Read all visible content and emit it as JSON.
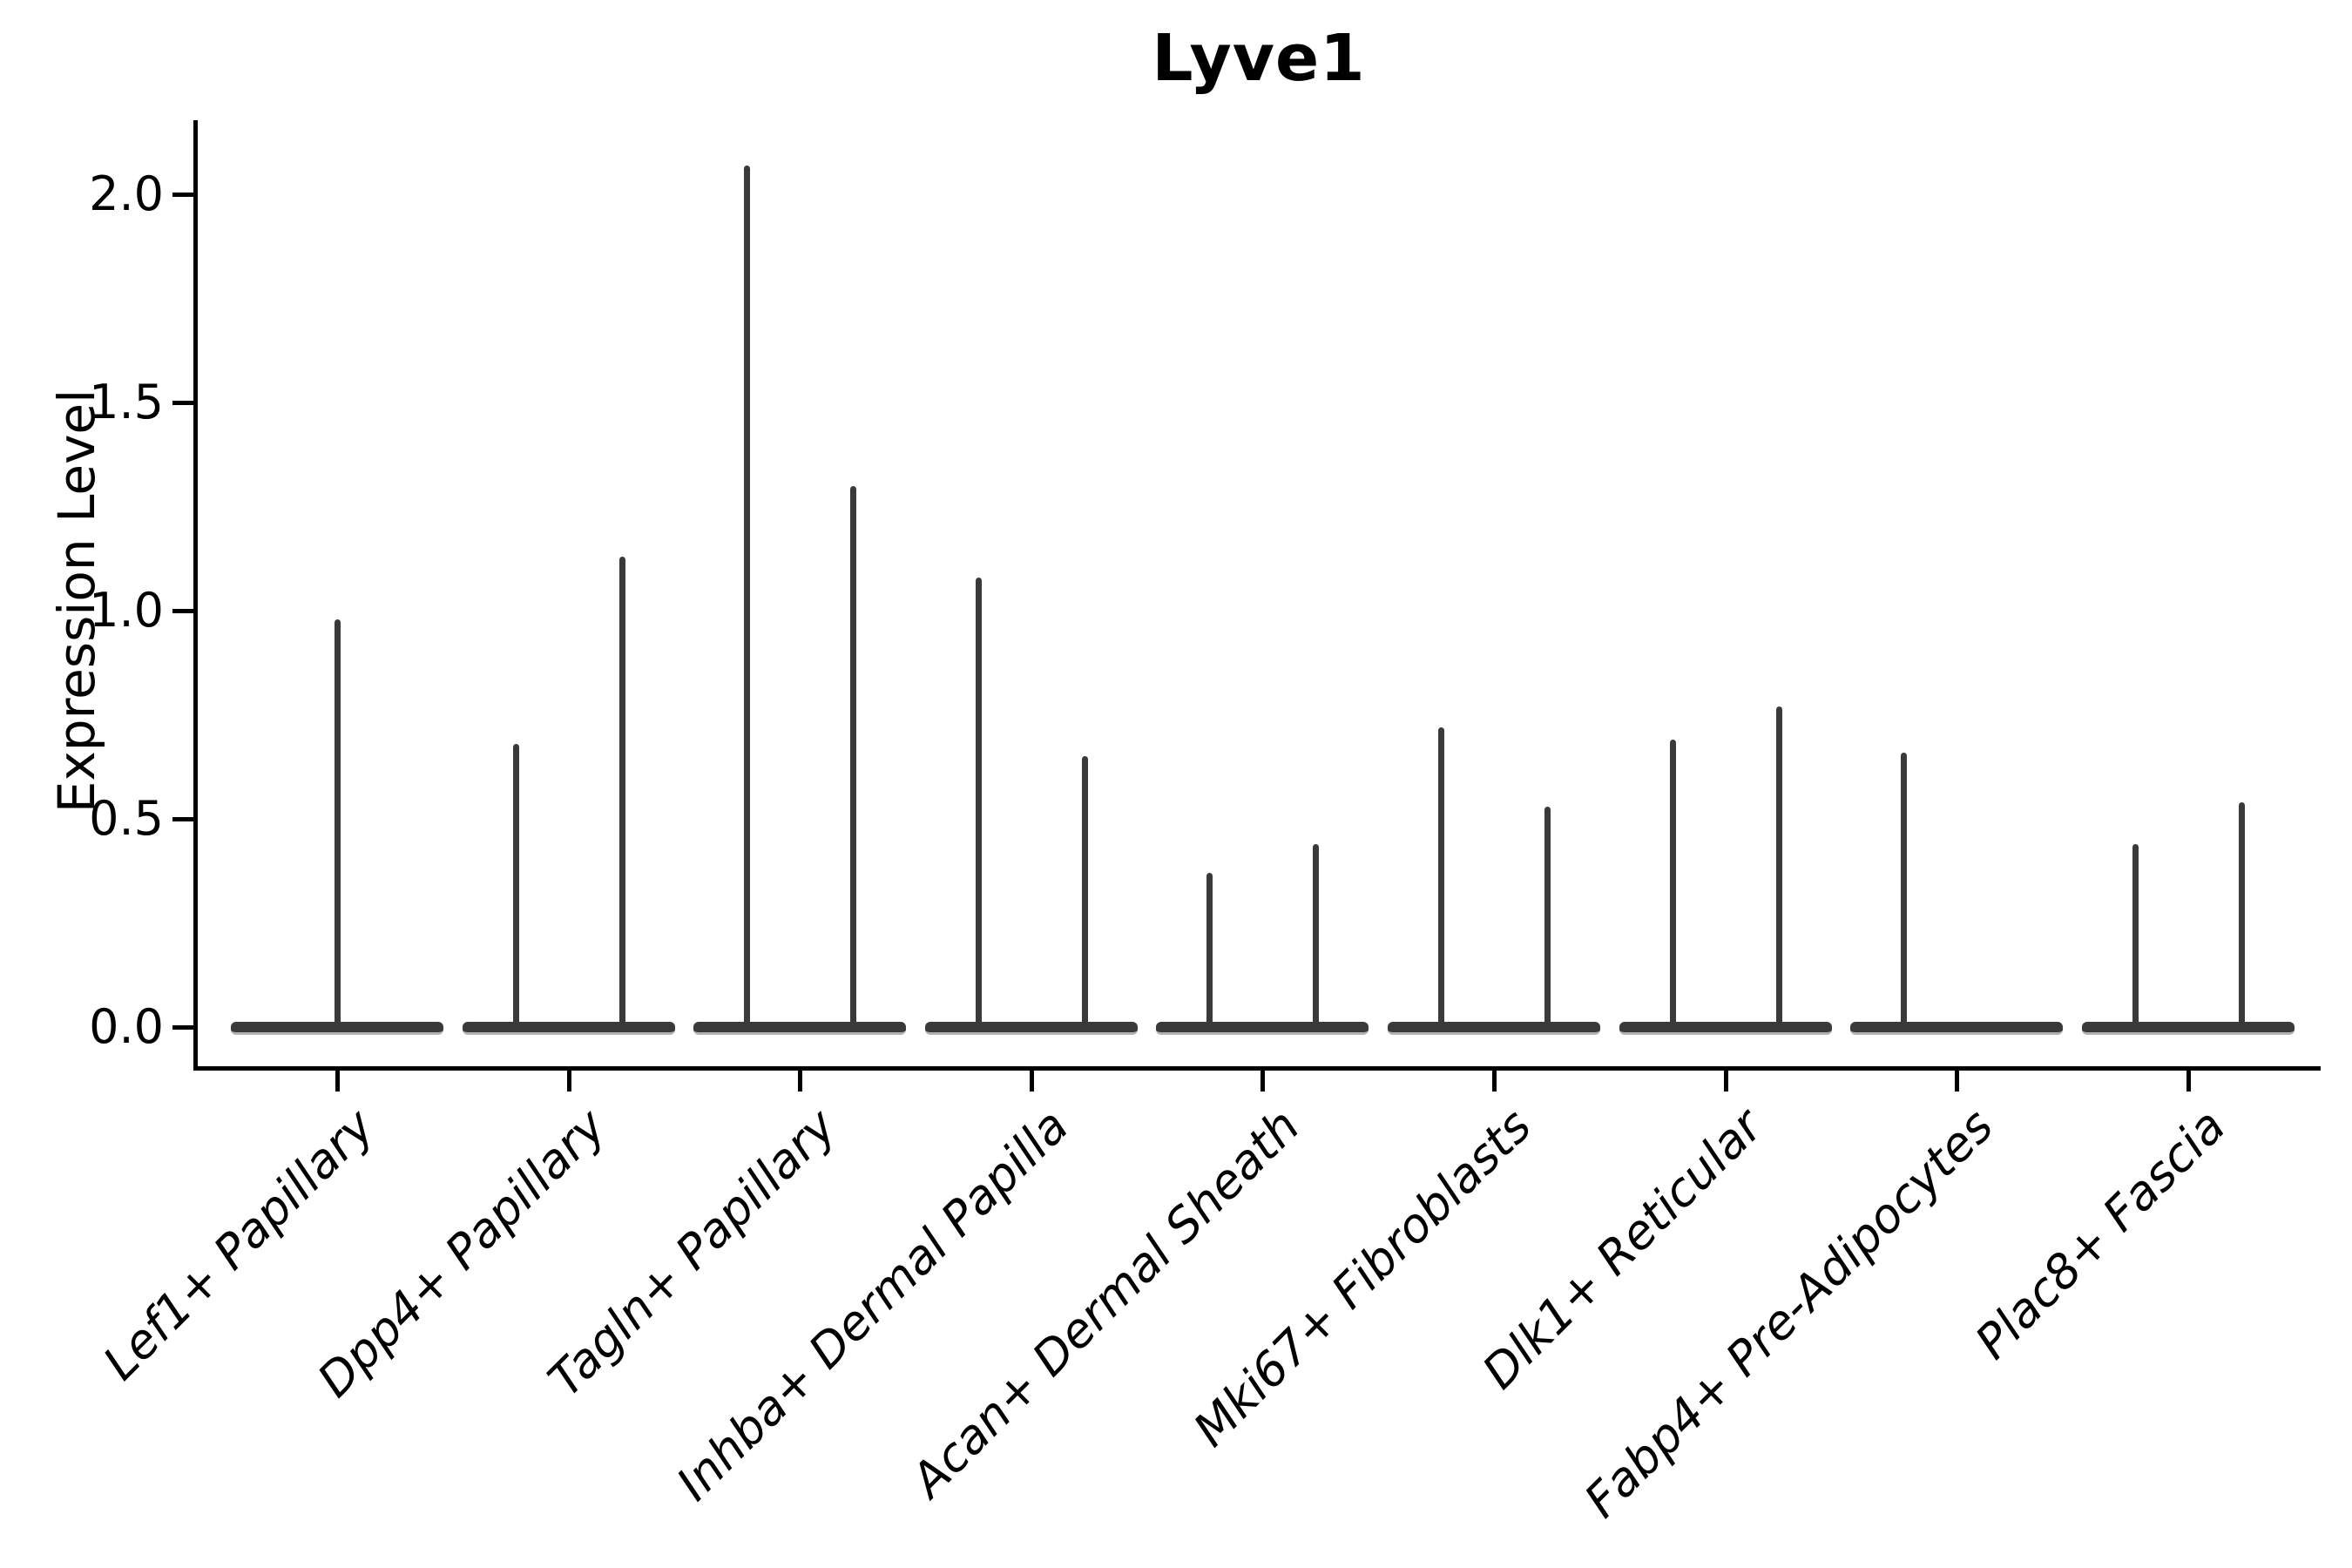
{
  "chart_data": {
    "type": "violin",
    "title": "Lyve1",
    "xlabel": "",
    "ylabel": "Expression Level",
    "ylim": [
      -0.09,
      2.18
    ],
    "yticks": [
      0.0,
      0.5,
      1.0,
      1.5,
      2.0
    ],
    "ytick_labels": [
      "0.0",
      "0.5",
      "1.0",
      "1.5",
      "2.0"
    ],
    "grid": false,
    "legend": "none",
    "description": "Needle-shaped violins: expression is mostly 0 in every cluster with thin spikes up to the listed maximum expression value. Most clusters show a left and right dodged violin pair; Lef1+ Papillary has a single centered violin; Fabp4+ Pre-Adipocytes shows only the left spike.",
    "categories": [
      {
        "label": "Lef1+ Papillary",
        "needles": [
          {
            "position": "center",
            "max": 0.98
          }
        ]
      },
      {
        "label": "Dpp4+ Papillary",
        "needles": [
          {
            "position": "left",
            "max": 0.68
          },
          {
            "position": "right",
            "max": 1.13
          }
        ]
      },
      {
        "label": "Tagln+ Papillary",
        "needles": [
          {
            "position": "left",
            "max": 2.07
          },
          {
            "position": "right",
            "max": 1.3
          }
        ]
      },
      {
        "label": "Inhba+ Dermal Papilla",
        "needles": [
          {
            "position": "left",
            "max": 1.08
          },
          {
            "position": "right",
            "max": 0.65
          }
        ]
      },
      {
        "label": "Acan+ Dermal Sheath",
        "needles": [
          {
            "position": "left",
            "max": 0.37
          },
          {
            "position": "right",
            "max": 0.44
          }
        ]
      },
      {
        "label": "Mki67+ Fibroblasts",
        "needles": [
          {
            "position": "left",
            "max": 0.72
          },
          {
            "position": "right",
            "max": 0.53
          }
        ]
      },
      {
        "label": "Dlk1+ Reticular",
        "needles": [
          {
            "position": "left",
            "max": 0.69
          },
          {
            "position": "right",
            "max": 0.77
          }
        ]
      },
      {
        "label": "Fabp4+ Pre-Adipocytes",
        "needles": [
          {
            "position": "left",
            "max": 0.66
          }
        ]
      },
      {
        "label": "Plac8+ Fascia",
        "needles": [
          {
            "position": "left",
            "max": 0.44
          },
          {
            "position": "right",
            "max": 0.54
          }
        ]
      }
    ],
    "colors": {
      "violin_fill": "#3a3a3a",
      "violin_outline": "#b3b3b3",
      "axis": "#000000",
      "text": "#000000",
      "background": "#ffffff"
    }
  }
}
